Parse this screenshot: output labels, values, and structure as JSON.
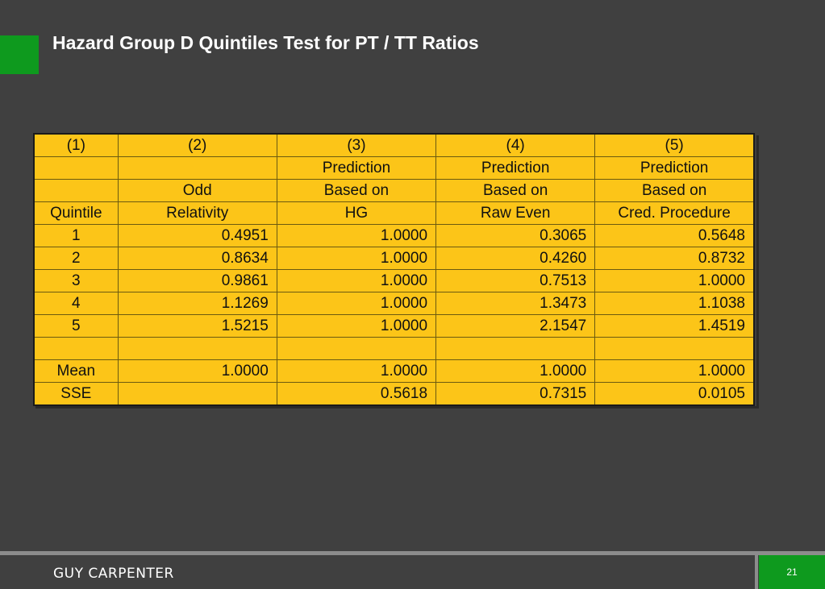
{
  "slide": {
    "title": "Hazard Group D Quintiles Test for PT / TT Ratios",
    "accent_color": "#0e9a1e",
    "background_color": "#404040"
  },
  "table": {
    "fill_color": "#fcc518",
    "header_rows": [
      [
        "(1)",
        "(2)",
        "(3)",
        "(4)",
        "(5)"
      ],
      [
        "",
        "",
        "Prediction",
        "Prediction",
        "Prediction"
      ],
      [
        "",
        "Odd",
        "Based on",
        "Based on",
        "Based on"
      ],
      [
        "Quintile",
        "Relativity",
        "HG",
        "Raw Even",
        "Cred. Procedure"
      ]
    ],
    "body_rows": [
      [
        "1",
        "0.4951",
        "1.0000",
        "0.3065",
        "0.5648"
      ],
      [
        "2",
        "0.8634",
        "1.0000",
        "0.4260",
        "0.8732"
      ],
      [
        "3",
        "0.9861",
        "1.0000",
        "0.7513",
        "1.0000"
      ],
      [
        "4",
        "1.1269",
        "1.0000",
        "1.3473",
        "1.1038"
      ],
      [
        "5",
        "1.5215",
        "1.0000",
        "2.1547",
        "1.4519"
      ],
      [
        "",
        "",
        "",
        "",
        ""
      ],
      [
        "Mean",
        "1.0000",
        "1.0000",
        "1.0000",
        "1.0000"
      ],
      [
        "SSE",
        "",
        "0.5618",
        "0.7315",
        "0.0105"
      ]
    ]
  },
  "footer": {
    "brand": "GUY CARPENTER",
    "page_number": "21"
  }
}
